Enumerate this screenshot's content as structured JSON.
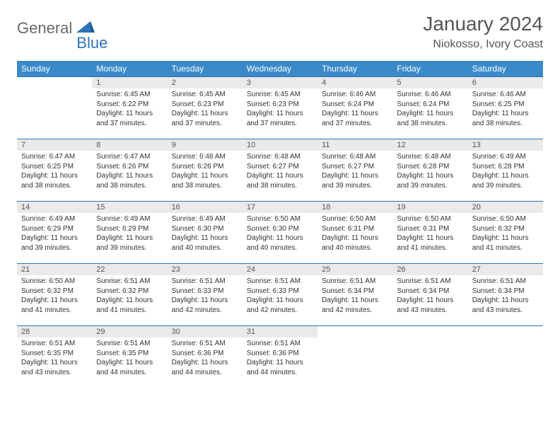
{
  "brand": {
    "part1": "General",
    "part2": "Blue"
  },
  "title": "January 2024",
  "location": "Niokosso, Ivory Coast",
  "colors": {
    "header_bg": "#3a8ac9",
    "header_text": "#ffffff",
    "row_border": "#2e74b5",
    "daynum_bg": "#eaeaea",
    "body_text": "#333333",
    "brand_gray": "#6a6a6a",
    "brand_blue": "#2e74b5"
  },
  "weekdays": [
    "Sunday",
    "Monday",
    "Tuesday",
    "Wednesday",
    "Thursday",
    "Friday",
    "Saturday"
  ],
  "weeks": [
    [
      {
        "empty": true
      },
      {
        "n": "1",
        "sr": "Sunrise: 6:45 AM",
        "ss": "Sunset: 6:22 PM",
        "d1": "Daylight: 11 hours",
        "d2": "and 37 minutes."
      },
      {
        "n": "2",
        "sr": "Sunrise: 6:45 AM",
        "ss": "Sunset: 6:23 PM",
        "d1": "Daylight: 11 hours",
        "d2": "and 37 minutes."
      },
      {
        "n": "3",
        "sr": "Sunrise: 6:45 AM",
        "ss": "Sunset: 6:23 PM",
        "d1": "Daylight: 11 hours",
        "d2": "and 37 minutes."
      },
      {
        "n": "4",
        "sr": "Sunrise: 6:46 AM",
        "ss": "Sunset: 6:24 PM",
        "d1": "Daylight: 11 hours",
        "d2": "and 37 minutes."
      },
      {
        "n": "5",
        "sr": "Sunrise: 6:46 AM",
        "ss": "Sunset: 6:24 PM",
        "d1": "Daylight: 11 hours",
        "d2": "and 38 minutes."
      },
      {
        "n": "6",
        "sr": "Sunrise: 6:46 AM",
        "ss": "Sunset: 6:25 PM",
        "d1": "Daylight: 11 hours",
        "d2": "and 38 minutes."
      }
    ],
    [
      {
        "n": "7",
        "sr": "Sunrise: 6:47 AM",
        "ss": "Sunset: 6:25 PM",
        "d1": "Daylight: 11 hours",
        "d2": "and 38 minutes."
      },
      {
        "n": "8",
        "sr": "Sunrise: 6:47 AM",
        "ss": "Sunset: 6:26 PM",
        "d1": "Daylight: 11 hours",
        "d2": "and 38 minutes."
      },
      {
        "n": "9",
        "sr": "Sunrise: 6:48 AM",
        "ss": "Sunset: 6:26 PM",
        "d1": "Daylight: 11 hours",
        "d2": "and 38 minutes."
      },
      {
        "n": "10",
        "sr": "Sunrise: 6:48 AM",
        "ss": "Sunset: 6:27 PM",
        "d1": "Daylight: 11 hours",
        "d2": "and 38 minutes."
      },
      {
        "n": "11",
        "sr": "Sunrise: 6:48 AM",
        "ss": "Sunset: 6:27 PM",
        "d1": "Daylight: 11 hours",
        "d2": "and 39 minutes."
      },
      {
        "n": "12",
        "sr": "Sunrise: 6:48 AM",
        "ss": "Sunset: 6:28 PM",
        "d1": "Daylight: 11 hours",
        "d2": "and 39 minutes."
      },
      {
        "n": "13",
        "sr": "Sunrise: 6:49 AM",
        "ss": "Sunset: 6:28 PM",
        "d1": "Daylight: 11 hours",
        "d2": "and 39 minutes."
      }
    ],
    [
      {
        "n": "14",
        "sr": "Sunrise: 6:49 AM",
        "ss": "Sunset: 6:29 PM",
        "d1": "Daylight: 11 hours",
        "d2": "and 39 minutes."
      },
      {
        "n": "15",
        "sr": "Sunrise: 6:49 AM",
        "ss": "Sunset: 6:29 PM",
        "d1": "Daylight: 11 hours",
        "d2": "and 39 minutes."
      },
      {
        "n": "16",
        "sr": "Sunrise: 6:49 AM",
        "ss": "Sunset: 6:30 PM",
        "d1": "Daylight: 11 hours",
        "d2": "and 40 minutes."
      },
      {
        "n": "17",
        "sr": "Sunrise: 6:50 AM",
        "ss": "Sunset: 6:30 PM",
        "d1": "Daylight: 11 hours",
        "d2": "and 40 minutes."
      },
      {
        "n": "18",
        "sr": "Sunrise: 6:50 AM",
        "ss": "Sunset: 6:31 PM",
        "d1": "Daylight: 11 hours",
        "d2": "and 40 minutes."
      },
      {
        "n": "19",
        "sr": "Sunrise: 6:50 AM",
        "ss": "Sunset: 6:31 PM",
        "d1": "Daylight: 11 hours",
        "d2": "and 41 minutes."
      },
      {
        "n": "20",
        "sr": "Sunrise: 6:50 AM",
        "ss": "Sunset: 6:32 PM",
        "d1": "Daylight: 11 hours",
        "d2": "and 41 minutes."
      }
    ],
    [
      {
        "n": "21",
        "sr": "Sunrise: 6:50 AM",
        "ss": "Sunset: 6:32 PM",
        "d1": "Daylight: 11 hours",
        "d2": "and 41 minutes."
      },
      {
        "n": "22",
        "sr": "Sunrise: 6:51 AM",
        "ss": "Sunset: 6:32 PM",
        "d1": "Daylight: 11 hours",
        "d2": "and 41 minutes."
      },
      {
        "n": "23",
        "sr": "Sunrise: 6:51 AM",
        "ss": "Sunset: 6:33 PM",
        "d1": "Daylight: 11 hours",
        "d2": "and 42 minutes."
      },
      {
        "n": "24",
        "sr": "Sunrise: 6:51 AM",
        "ss": "Sunset: 6:33 PM",
        "d1": "Daylight: 11 hours",
        "d2": "and 42 minutes."
      },
      {
        "n": "25",
        "sr": "Sunrise: 6:51 AM",
        "ss": "Sunset: 6:34 PM",
        "d1": "Daylight: 11 hours",
        "d2": "and 42 minutes."
      },
      {
        "n": "26",
        "sr": "Sunrise: 6:51 AM",
        "ss": "Sunset: 6:34 PM",
        "d1": "Daylight: 11 hours",
        "d2": "and 43 minutes."
      },
      {
        "n": "27",
        "sr": "Sunrise: 6:51 AM",
        "ss": "Sunset: 6:34 PM",
        "d1": "Daylight: 11 hours",
        "d2": "and 43 minutes."
      }
    ],
    [
      {
        "n": "28",
        "sr": "Sunrise: 6:51 AM",
        "ss": "Sunset: 6:35 PM",
        "d1": "Daylight: 11 hours",
        "d2": "and 43 minutes."
      },
      {
        "n": "29",
        "sr": "Sunrise: 6:51 AM",
        "ss": "Sunset: 6:35 PM",
        "d1": "Daylight: 11 hours",
        "d2": "and 44 minutes."
      },
      {
        "n": "30",
        "sr": "Sunrise: 6:51 AM",
        "ss": "Sunset: 6:36 PM",
        "d1": "Daylight: 11 hours",
        "d2": "and 44 minutes."
      },
      {
        "n": "31",
        "sr": "Sunrise: 6:51 AM",
        "ss": "Sunset: 6:36 PM",
        "d1": "Daylight: 11 hours",
        "d2": "and 44 minutes."
      },
      {
        "empty": true
      },
      {
        "empty": true
      },
      {
        "empty": true
      }
    ]
  ]
}
